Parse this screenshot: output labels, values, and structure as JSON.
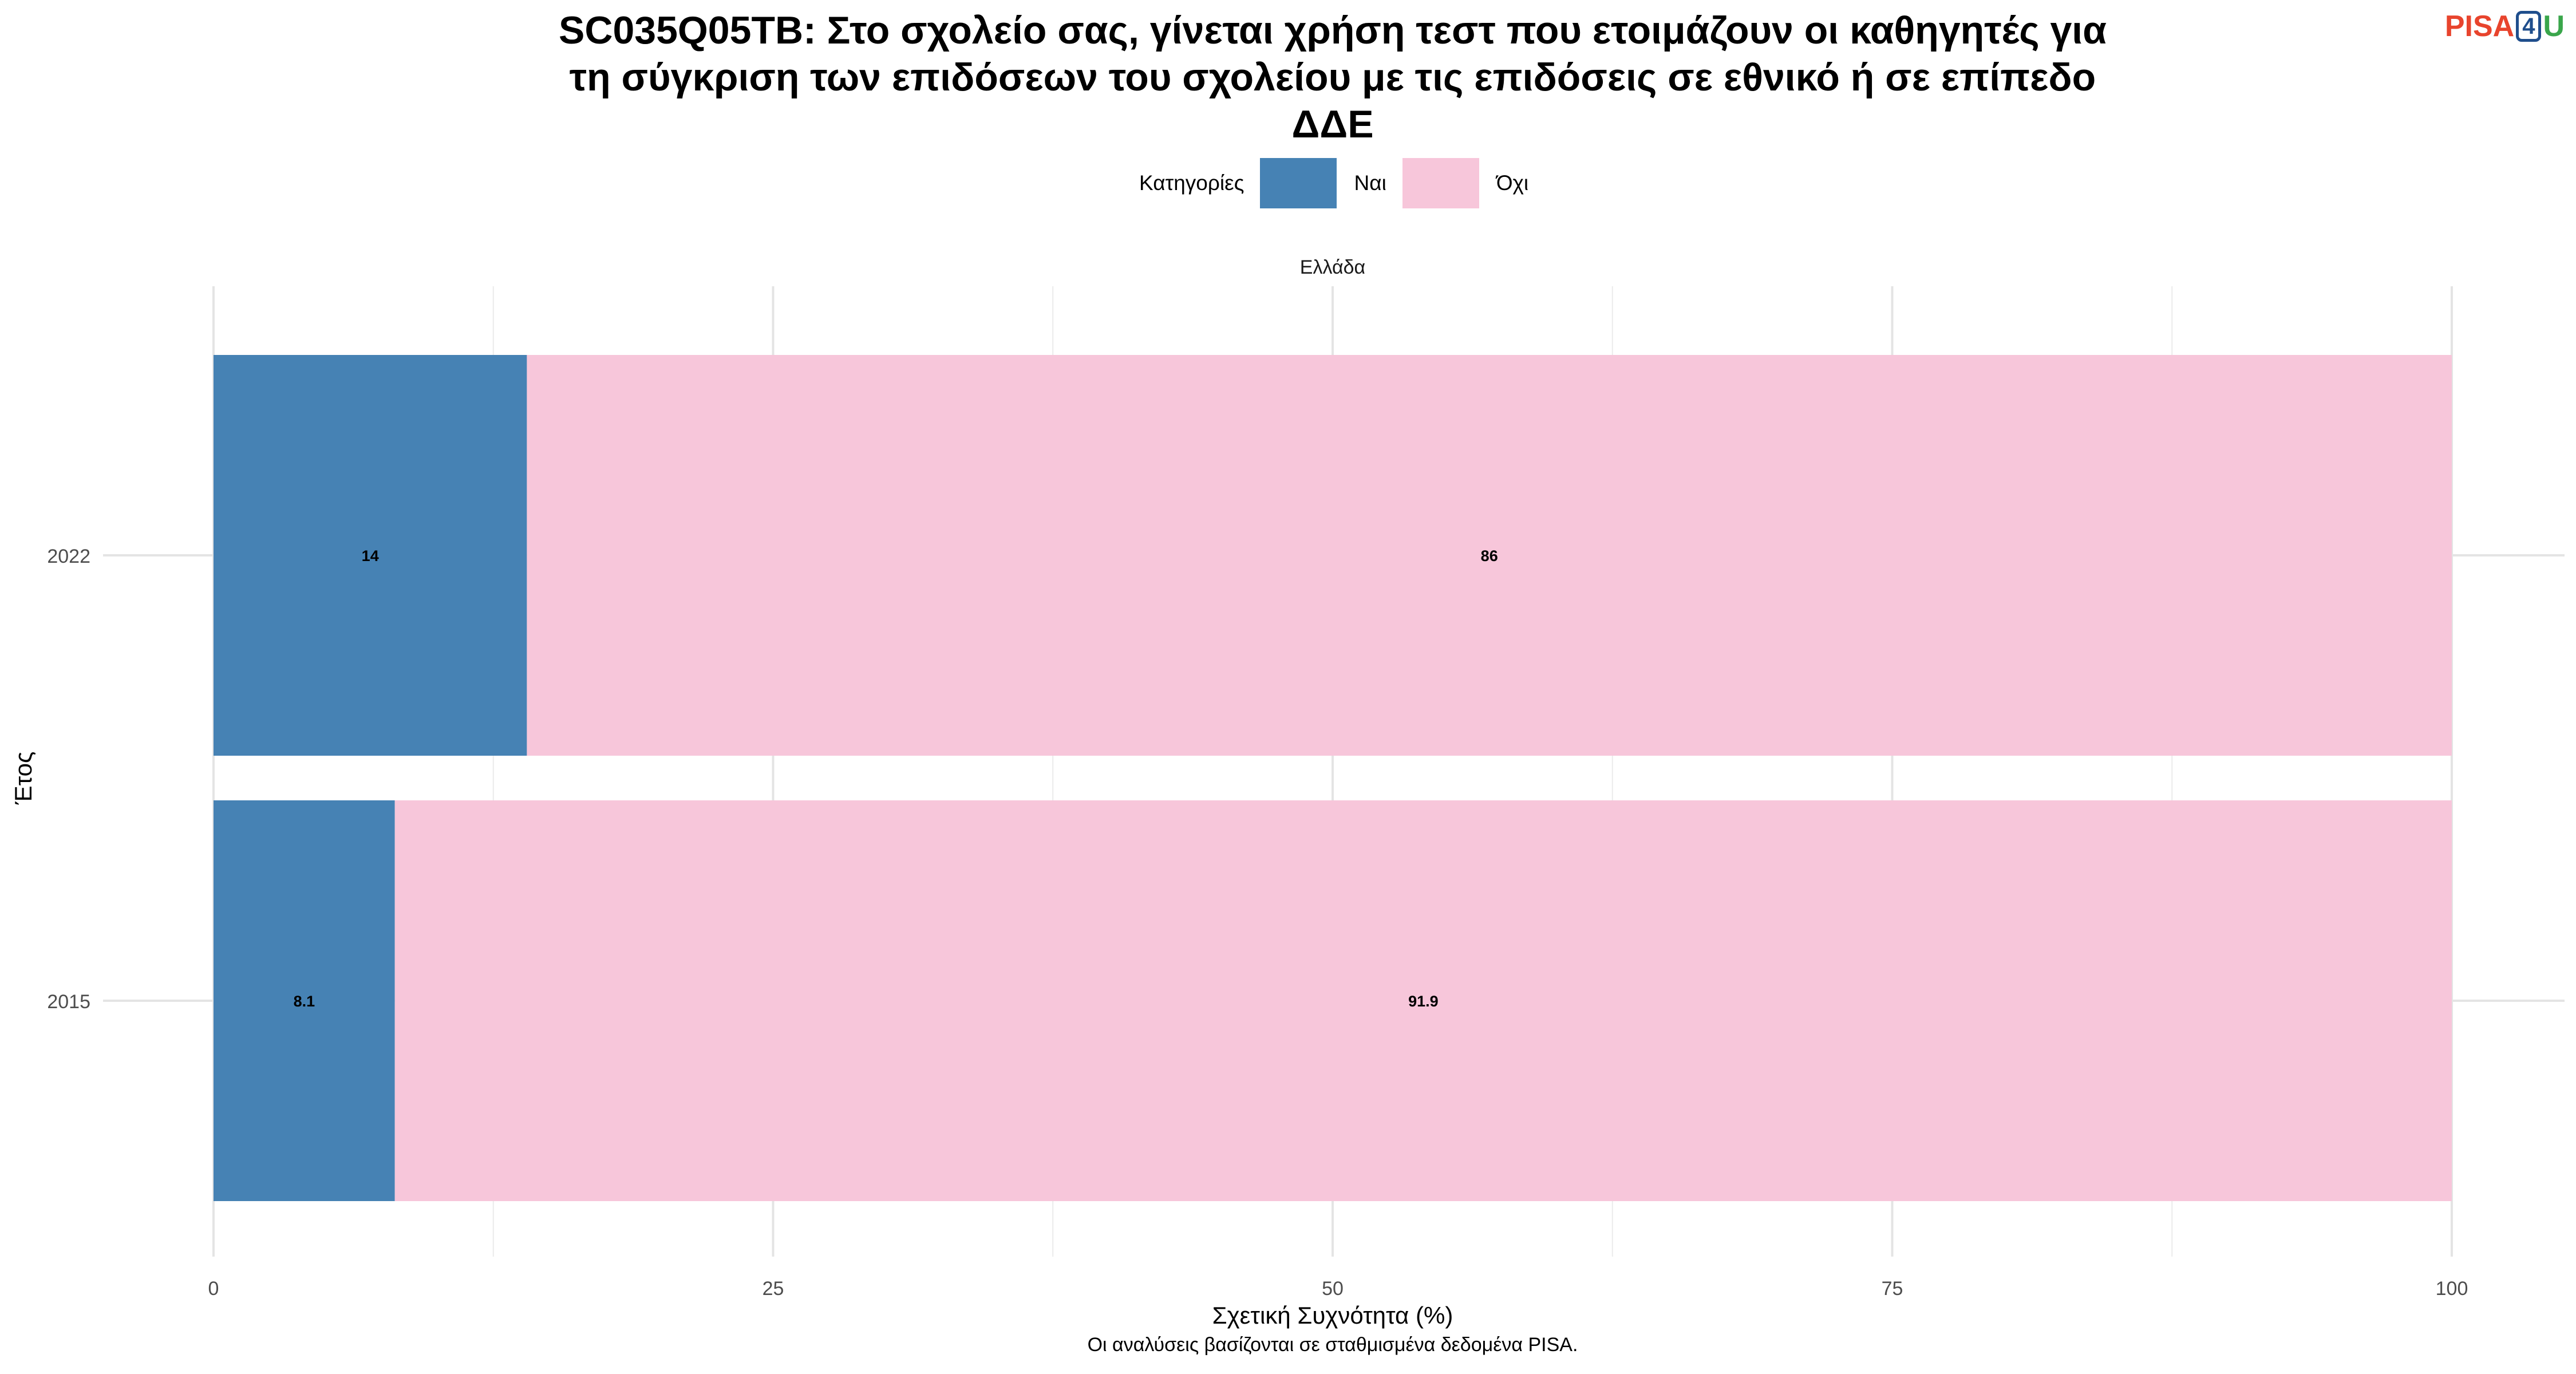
{
  "title_lines": [
    "SC035Q05TB: Στο σχολείο σας, γίνεται χρήση τεστ που ετοιμάζουν οι καθηγητές για",
    "τη σύγκριση των επιδόσεων του σχολείου με τις επιδόσεις σε εθνικό ή σε επίπεδο",
    "ΔΔΕ"
  ],
  "logo": {
    "part1": "PISA",
    "part2": "4",
    "part3": "U"
  },
  "legend": {
    "title": "Κατηγορίες",
    "items": [
      {
        "label": "Ναι",
        "color": "#4682b4"
      },
      {
        "label": "Όχι",
        "color": "#f7c6da"
      }
    ]
  },
  "caption": "Οι αναλύσεις βασίζονται σε σταθμισμένα δεδομένα PISA.",
  "chart_data": {
    "type": "bar",
    "orientation": "horizontal",
    "stacked": true,
    "facet_label": "Ελλάδα",
    "categories": [
      "2022",
      "2015"
    ],
    "series": [
      {
        "name": "Ναι",
        "values": [
          14,
          8.1
        ],
        "labels": [
          "14",
          "8.1"
        ],
        "color": "#4682b4"
      },
      {
        "name": "Όχι",
        "values": [
          86,
          91.9
        ],
        "labels": [
          "86",
          "91.9"
        ],
        "color": "#f7c6da"
      }
    ],
    "xlabel": "Σχετική Συχνότητα (%)",
    "ylabel": "Έτος",
    "xlim": [
      0,
      100
    ],
    "xticks": [
      0,
      25,
      50,
      75,
      100
    ],
    "grid": true,
    "legend_position": "top"
  }
}
